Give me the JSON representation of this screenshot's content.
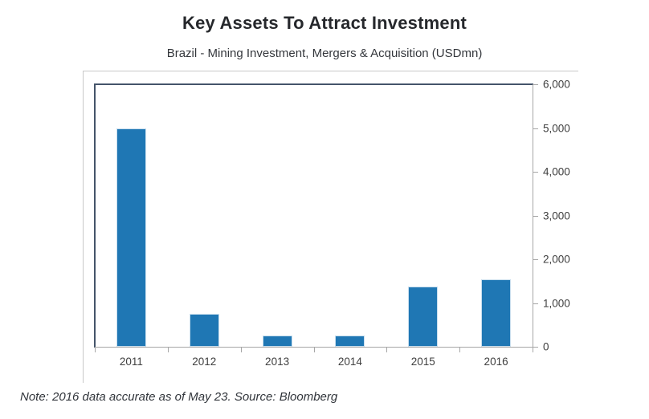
{
  "header": {
    "title": "Key Assets To Attract Investment",
    "subtitle": "Brazil - Mining Investment, Mergers & Acquisition (USDmn)"
  },
  "chart_data": {
    "type": "bar",
    "categories": [
      "2011",
      "2012",
      "2013",
      "2014",
      "2015",
      "2016"
    ],
    "values": [
      5000,
      750,
      250,
      260,
      1370,
      1535
    ],
    "title": "Key Assets To Attract Investment",
    "subtitle": "Brazil - Mining Investment, Mergers & Acquisition (USDmn)",
    "xlabel": "",
    "ylabel": "",
    "ylim": [
      0,
      6000
    ],
    "y_ticks": [
      0,
      1000,
      2000,
      3000,
      4000,
      5000,
      6000
    ],
    "y_tick_labels": [
      "0",
      "1,000",
      "2,000",
      "3,000",
      "4,000",
      "5,000",
      "6,000"
    ],
    "y_axis_side": "right",
    "grid": false,
    "legend": false
  },
  "footer": {
    "note": "Note: 2016 data accurate as of May 23. Source: Bloomberg"
  },
  "colors": {
    "bar": "#1f77b4",
    "plot_border_accent": "#44546a",
    "axis_line": "#a6a6a6",
    "frame_border": "#c9c9c9",
    "title_text": "#26282c",
    "axis_text": "#3f3f3f"
  }
}
